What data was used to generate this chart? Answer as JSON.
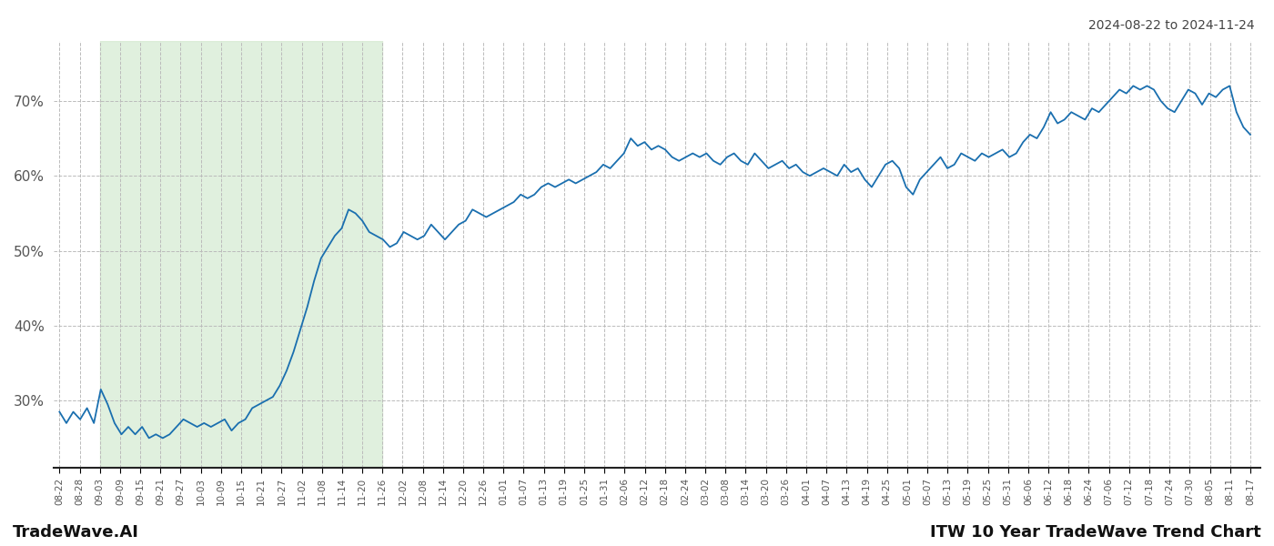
{
  "title_top_right": "2024-08-22 to 2024-11-24",
  "title_bottom_left": "TradeWave.AI",
  "title_bottom_right": "ITW 10 Year TradeWave Trend Chart",
  "line_color": "#1a6faf",
  "line_width": 1.3,
  "bg_color": "#ffffff",
  "grid_color": "#bbbbbb",
  "grid_linestyle": "--",
  "highlight_color": "#d4ead0",
  "highlight_alpha": 0.7,
  "ylim": [
    21,
    78
  ],
  "yticks": [
    30,
    40,
    50,
    60,
    70
  ],
  "ylabel_format": "{}%",
  "highlight_start_label": "09-03",
  "highlight_end_label": "11-26",
  "xtick_labels": [
    "08-22",
    "08-28",
    "09-03",
    "09-09",
    "09-15",
    "09-21",
    "09-27",
    "10-03",
    "10-09",
    "10-15",
    "10-21",
    "10-27",
    "11-02",
    "11-08",
    "11-14",
    "11-20",
    "11-26",
    "12-02",
    "12-08",
    "12-14",
    "12-20",
    "12-26",
    "01-01",
    "01-07",
    "01-13",
    "01-19",
    "01-25",
    "01-31",
    "02-06",
    "02-12",
    "02-18",
    "02-24",
    "03-02",
    "03-08",
    "03-14",
    "03-20",
    "03-26",
    "04-01",
    "04-07",
    "04-13",
    "04-19",
    "04-25",
    "05-01",
    "05-07",
    "05-13",
    "05-19",
    "05-25",
    "05-31",
    "06-06",
    "06-12",
    "06-18",
    "06-24",
    "07-06",
    "07-12",
    "07-18",
    "07-24",
    "07-30",
    "08-05",
    "08-11",
    "08-17"
  ],
  "y_values": [
    28.5,
    27.0,
    28.5,
    27.5,
    29.0,
    27.0,
    31.5,
    29.5,
    27.0,
    25.5,
    26.5,
    25.5,
    26.5,
    25.0,
    25.5,
    25.0,
    25.5,
    26.5,
    27.5,
    27.0,
    26.5,
    27.0,
    26.5,
    27.0,
    27.5,
    26.0,
    27.0,
    27.5,
    29.0,
    29.5,
    30.0,
    30.5,
    32.0,
    34.0,
    36.5,
    39.5,
    42.5,
    46.0,
    49.0,
    50.5,
    52.0,
    53.0,
    55.5,
    55.0,
    54.0,
    52.5,
    52.0,
    51.5,
    50.5,
    51.0,
    52.5,
    52.0,
    51.5,
    52.0,
    53.5,
    52.5,
    51.5,
    52.5,
    53.5,
    54.0,
    55.5,
    55.0,
    54.5,
    55.0,
    55.5,
    56.0,
    56.5,
    57.5,
    57.0,
    57.5,
    58.5,
    59.0,
    58.5,
    59.0,
    59.5,
    59.0,
    59.5,
    60.0,
    60.5,
    61.5,
    61.0,
    62.0,
    63.0,
    65.0,
    64.0,
    64.5,
    63.5,
    64.0,
    63.5,
    62.5,
    62.0,
    62.5,
    63.0,
    62.5,
    63.0,
    62.0,
    61.5,
    62.5,
    63.0,
    62.0,
    61.5,
    63.0,
    62.0,
    61.0,
    61.5,
    62.0,
    61.0,
    61.5,
    60.5,
    60.0,
    60.5,
    61.0,
    60.5,
    60.0,
    61.5,
    60.5,
    61.0,
    59.5,
    58.5,
    60.0,
    61.5,
    62.0,
    61.0,
    58.5,
    57.5,
    59.5,
    60.5,
    61.5,
    62.5,
    61.0,
    61.5,
    63.0,
    62.5,
    62.0,
    63.0,
    62.5,
    63.0,
    63.5,
    62.5,
    63.0,
    64.5,
    65.5,
    65.0,
    66.5,
    68.5,
    67.0,
    67.5,
    68.5,
    68.0,
    67.5,
    69.0,
    68.5,
    69.5,
    70.5,
    71.5,
    71.0,
    72.0,
    71.5,
    72.0,
    71.5,
    70.0,
    69.0,
    68.5,
    70.0,
    71.5,
    71.0,
    69.5,
    71.0,
    70.5,
    71.5,
    72.0,
    68.5,
    66.5,
    65.5
  ]
}
